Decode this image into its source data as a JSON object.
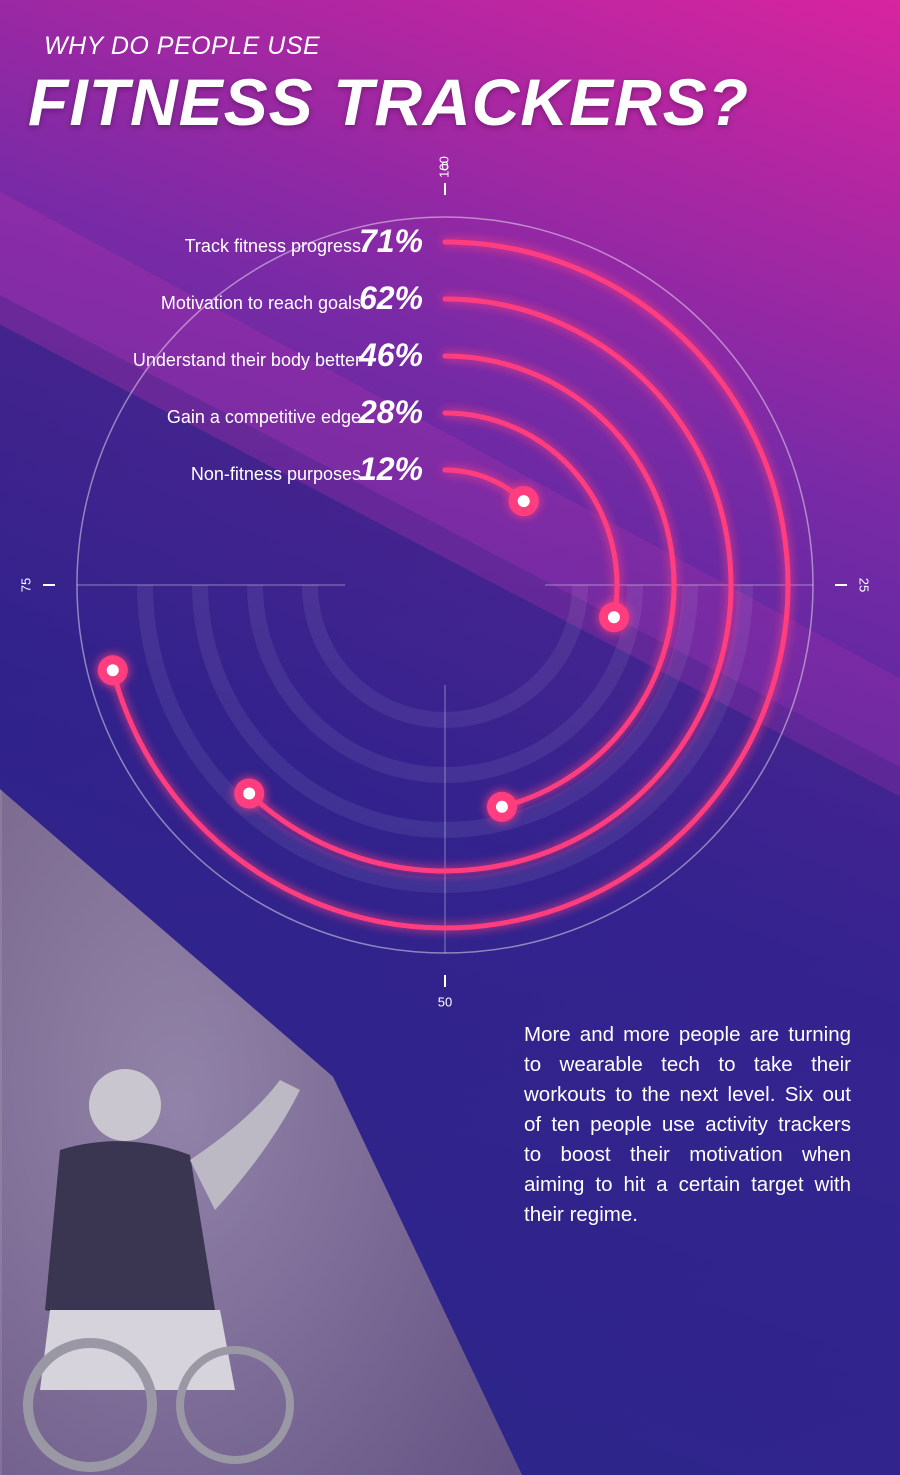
{
  "header": {
    "subtitle": "WHY DO PEOPLE USE",
    "title": "FITNESS TRACKERS?"
  },
  "chart_data": {
    "type": "radial-bar",
    "axis_range": [
      0,
      100
    ],
    "axis_ticks": [
      0,
      25,
      50,
      75,
      100
    ],
    "categories": [
      "Track fitness progress",
      "Motivation to reach goals",
      "Understand their body better",
      "Gain a competitive edge",
      "Non-fitness purposes"
    ],
    "values": [
      71,
      62,
      46,
      28,
      12
    ],
    "value_labels": [
      "71%",
      "62%",
      "46%",
      "28%",
      "12%"
    ],
    "arc_color": "#ff3d7f",
    "endpoint_color": "#ffffff"
  },
  "description": "More and more people are turning to wearable tech to take their workouts to the next level. Six out of ten people use activity trackers to boost their motivation when aiming to hit a certain target with their regime."
}
